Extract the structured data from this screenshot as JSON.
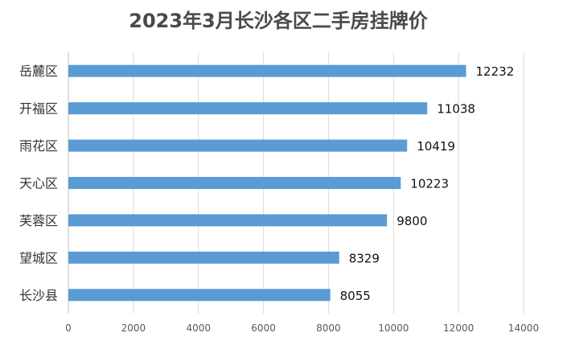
{
  "chart_data": {
    "type": "bar",
    "orientation": "horizontal",
    "title": "2023年3月长沙各区二手房挂牌价",
    "categories": [
      "岳麓区",
      "开福区",
      "雨花区",
      "天心区",
      "芙蓉区",
      "望城区",
      "长沙县"
    ],
    "values": [
      12232,
      11038,
      10419,
      10223,
      9800,
      8329,
      8055
    ],
    "xlabel": "",
    "ylabel": "",
    "xlim": [
      0,
      14000
    ],
    "x_ticks": [
      "0",
      "2000",
      "4000",
      "6000",
      "8000",
      "10000",
      "12000",
      "14000"
    ],
    "grid": true,
    "legend": "none",
    "bar_color": "#5b9bd5"
  }
}
